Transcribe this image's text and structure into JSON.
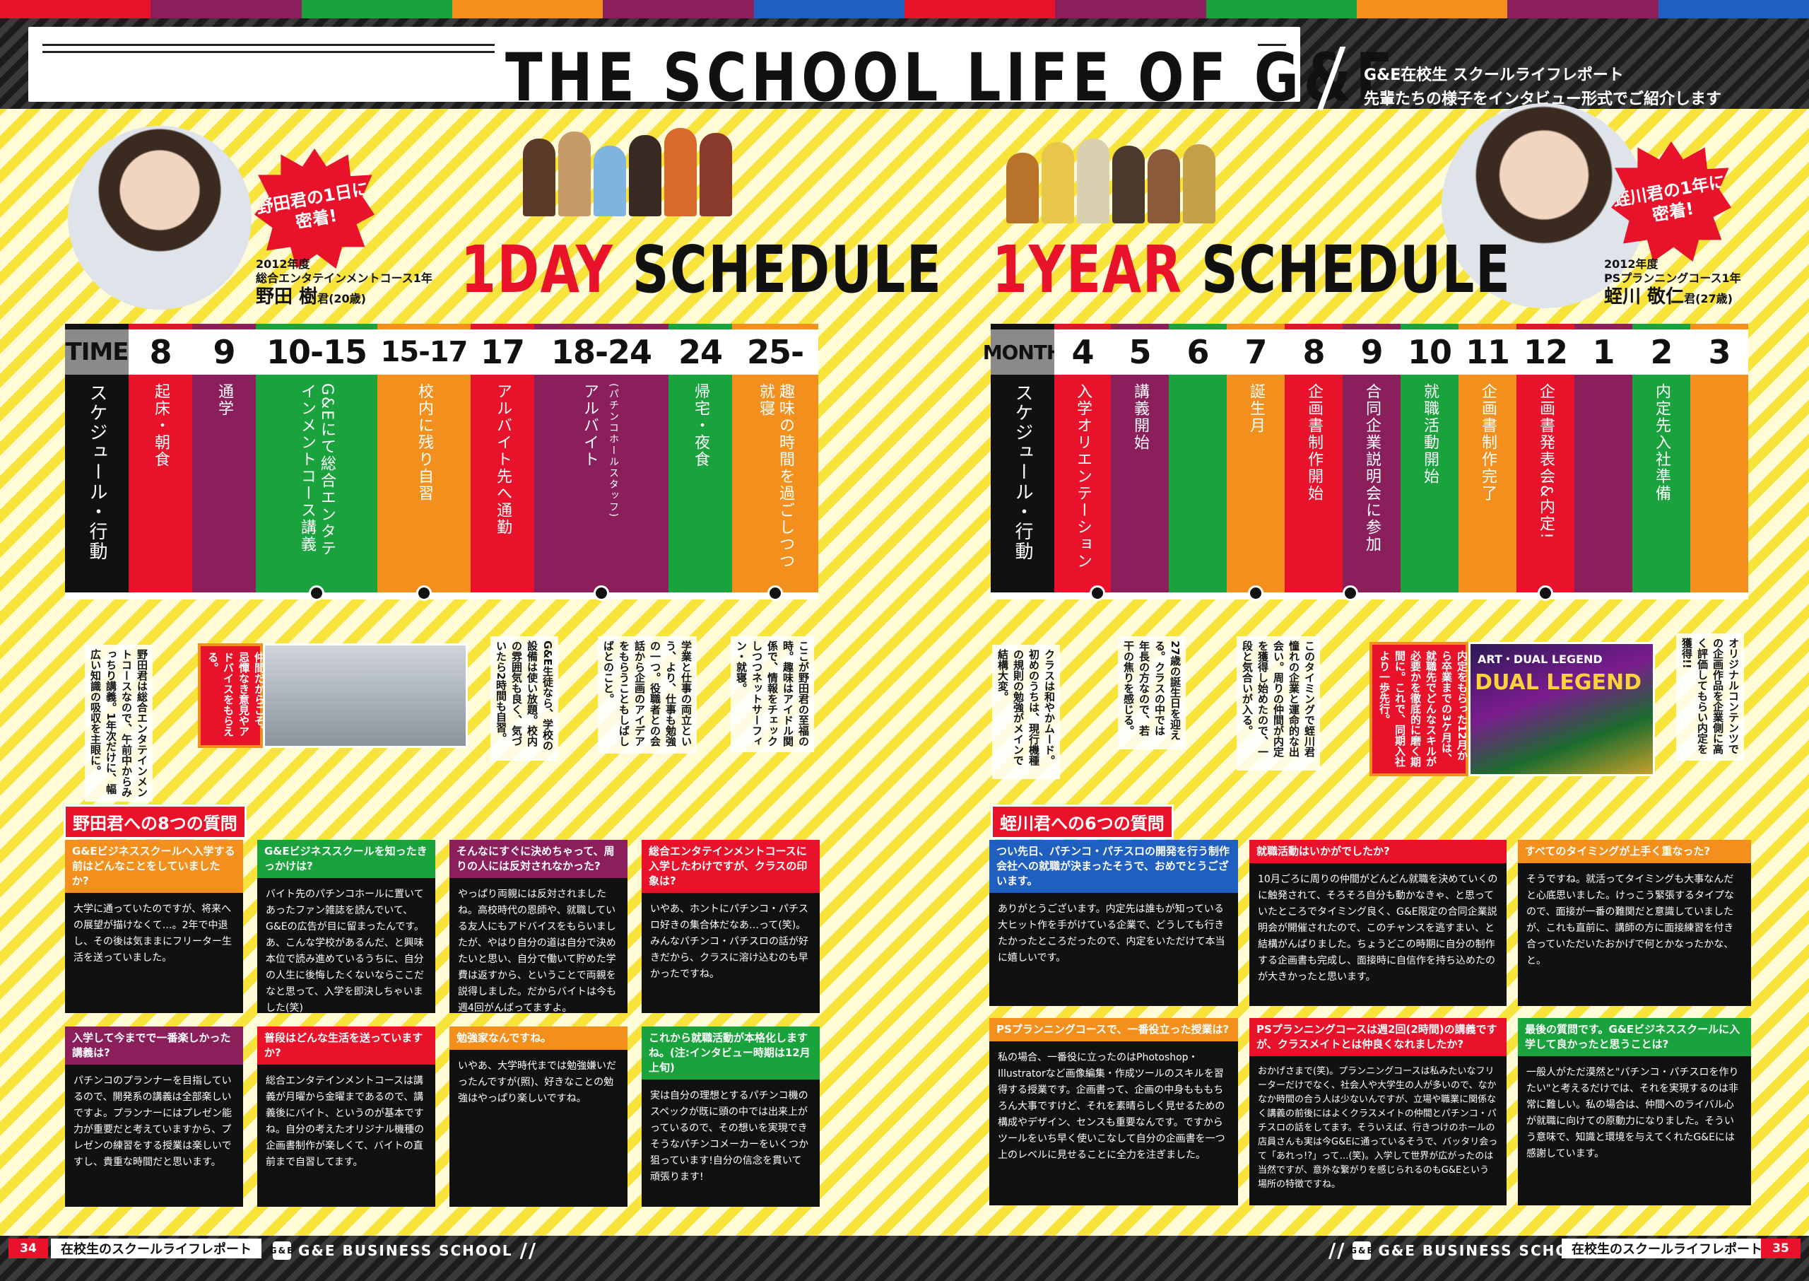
{
  "header": {
    "title": "THE SCHOOL LIFE OF G&E",
    "subtitle_line1": "G&E在校生 スクールライフレポート",
    "subtitle_line2": "先輩たちの様子をインタビュー形式でご紹介します"
  },
  "colors": {
    "red": "#e8132a",
    "purple": "#8b1f5c",
    "green": "#1aa23d",
    "orange": "#f3901d",
    "black": "#111111",
    "yellow": "#f7e33a",
    "blue": "#1f5fbf"
  },
  "left": {
    "burst": "野田君の1日に密着!",
    "person_year": "2012年度",
    "person_course": "総合エンタテインメントコース1年",
    "person_name": "野田 樹",
    "person_suffix": "君(20歳)",
    "title_red": "1DAY",
    "title_black": "SCHEDULE",
    "schedule": {
      "header_label": "TIME",
      "row_label": "スケジュール・行動",
      "columns": [
        {
          "h": "8",
          "text": "起床・朝食",
          "sub": ""
        },
        {
          "h": "9",
          "text": "通学",
          "sub": ""
        },
        {
          "h": "10-15",
          "text": "G&Eにて総合エンタテインメントコース講義",
          "sub": ""
        },
        {
          "h": "15-17",
          "text": "校内に残り自習",
          "sub": ""
        },
        {
          "h": "17",
          "text": "アルバイト先へ通勤",
          "sub": ""
        },
        {
          "h": "18-24",
          "text": "アルバイト",
          "sub": "(パチンコホールスタッフ)"
        },
        {
          "h": "24",
          "text": "帰宅・夜食",
          "sub": ""
        },
        {
          "h": "25-",
          "text": "趣味の時間を過ごしつつ就寝",
          "sub": ""
        }
      ]
    },
    "notes": [
      "野田君は総合エンタテインメントコースなので、午前中からみっちり講義。1年次だけに、幅広い知識の吸収を主眼に。",
      "この時間を利用して制作したオリジナルの企画書を、クラスメイトに公開!同じ夢を持つ仲間だからこそ、忌憚なき意見やアドバイスをもらえる。",
      "G&E生徒なら、学校の設備は使い放題。校内の雰囲気も良く、気づいたら2時間も自習。",
      "学業と仕事の両立という、より、仕事も勉強の一つ。役職者との会話から企画のアイデアをもらうこともしばしばとのこと。",
      "ここが野田君の至福の時。趣味はアイドル関係で、情報をチェックしつつネットサーフィン・就寝。"
    ],
    "qa_title": "野田君への8つの質問",
    "qa": [
      {
        "q": "G&Eビジネススクールへ入学する前はどんなことをしていましたか?",
        "a": "大学に通っていたのですが、将来への展望が描けなくて…。2年で中退し、その後は気ままにフリーター生活を送っていました。"
      },
      {
        "q": "G&Eビジネススクールを知ったきっかけは?",
        "a": "バイト先のパチンコホールに置いてあったファン雑誌を読んでいて、G&Eの広告が目に留まったんです。あ、こんな学校があるんだ、と興味本位で読み進めているうちに、自分の人生に後悔したくないならここだなと思って、入学を即決しちゃいました(笑)"
      },
      {
        "q": "そんなにすぐに決めちゃって、周りの人には反対されなかった?",
        "a": "やっぱり両親には反対されましたね。高校時代の恩師や、就職している友人にもアドバイスをもらいましたが、やはり自分の道は自分で決めたいと思い、自分で働いて貯めた学費は返すから、ということで両親を説得しました。だからバイトは今も週4回がんばってますよ。"
      },
      {
        "q": "総合エンタテインメントコースに入学したわけですが、クラスの印象は?",
        "a": "いやあ、ホントにパチンコ・パチスロ好きの集合体だなあ…って(笑)。みんなパチンコ・パチスロの話が好きだから、クラスに溶け込むのも早かったですね。"
      },
      {
        "q": "入学して今までで一番楽しかった講義は?",
        "a": "パチンコのプランナーを目指しているので、開発系の講義は全部楽しいですよ。プランナーにはプレゼン能力が重要だと考えていますから、プレゼンの練習をする授業は楽しいですし、貴重な時間だと思います。"
      },
      {
        "q": "普段はどんな生活を送っていますか?",
        "a": "総合エンタテインメントコースは講義が月曜から金曜まであるので、講義後にバイト、というのが基本ですね。自分の考えたオリジナル機種の企画書制作が楽しくて、バイトの直前まで自習してます。"
      },
      {
        "q": "勉強家なんですね。",
        "a": "いやあ、大学時代までは勉強嫌いだったんですが(照)、好きなことの勉強はやっぱり楽しいですね。"
      },
      {
        "q": "これから就職活動が本格化しますね。(注:インタビュー時期は12月上旬)",
        "a": "実は自分の理想とするパチンコ機のスペックが既に頭の中では出来上がっているので、その想いを実現できそうなパチンコメーカーをいくつか狙っています!自分の信念を貫いて頑張ります!"
      }
    ]
  },
  "right": {
    "burst": "蛭川君の1年に密着!",
    "person_year": "2012年度",
    "person_course": "PSプランニングコース1年",
    "person_name": "蛭川 敬仁",
    "person_suffix": "君(27歳)",
    "title_red": "1YEAR",
    "title_black": "SCHEDULE",
    "schedule": {
      "header_label": "MONTH",
      "row_label": "スケジュール・行動",
      "columns": [
        {
          "h": "4",
          "text": "入学オリエンテーション"
        },
        {
          "h": "5",
          "text": "講義開始"
        },
        {
          "h": "6",
          "text": ""
        },
        {
          "h": "7",
          "text": "誕生月"
        },
        {
          "h": "8",
          "text": "企画書制作開始"
        },
        {
          "h": "9",
          "text": "合同企業説明会に参加"
        },
        {
          "h": "10",
          "text": "就職活動開始"
        },
        {
          "h": "11",
          "text": "企画書制作完了"
        },
        {
          "h": "12",
          "text": "企画書発表会&内定!"
        },
        {
          "h": "1",
          "text": ""
        },
        {
          "h": "2",
          "text": "内定先入社準備"
        },
        {
          "h": "3",
          "text": ""
        }
      ]
    },
    "notes": [
      "クラスは和やかムード。初めのうちは、現行機種の規則の勉強がメインで結構大変。",
      "27歳の誕生日を迎える。クラスの中では年長の方なので、若干の焦りを感じる。",
      "このタイミングで蛭川君憧れの企業と運命的な出会い。周りの仲間が内定を獲得し始めたので、一段と気合いが入る。",
      "内定をもらった12月から卒業までの3ケ月は、就職先でどんなスキルが必要かを徹底的に磨く期間に。これで、同期入社より一歩先行。",
      "オリジナルコンテンツでの企画作品を企業側に高く評価してもらい内定を獲得!!"
    ],
    "game_label": "ART・DUAL LEGEND",
    "game_title": "DUAL LEGEND",
    "qa_title": "蛭川君への6つの質問",
    "qa": [
      {
        "q": "つい先日、パチンコ・パチスロの開発を行う制作会社への就職が決まったそうで、おめでとうございます。",
        "a": "ありがとうございます。内定先は誰もが知っている大ヒット作を手がけている企業で、どうしても行きたかったところだったので、内定をいただけて本当に嬉しいです。"
      },
      {
        "q": "就職活動はいかがでしたか?",
        "a": "10月ごろに周りの仲間がどんどん就職を決めていくのに触発されて、そろそろ自分も動かなきゃ、と思っていたところでタイミング良く、G&E限定の合同企業説明会が開催されたので、このチャンスを逃すまい、と結構がんばりました。ちょうどこの時期に自分の制作する企画書も完成し、面接時に自信作を持ち込めたのが大きかったと思います。"
      },
      {
        "q": "すべてのタイミングが上手く重なった?",
        "a": "そうですね。就活ってタイミングも大事なんだと心底思いました。けっこう緊張するタイプなので、面接が一番の難関だと意識していましたが、これも直前に、講師の方に面接練習を付き合っていただいたおかげで何とかなったかな、と。"
      },
      {
        "q": "PSプランニングコースで、一番役立った授業は?",
        "a": "私の場合、一番役に立ったのはPhotoshop・Illustratorなど画像編集・作成ツールのスキルを習得する授業です。企画書って、企画の中身もももちろん大事ですけど、それを素晴らしく見せるための構成やデザイン、センスも重要なんです。ですからツールをいち早く使いこなして自分の企画書を一つ上のレベルに見せることに全力を注ぎました。"
      },
      {
        "q": "PSプランニングコースは週2回(2時間)の講義ですが、クラスメイトとは仲良くなれましたか?",
        "a": "おかげさまで(笑)。プランニングコースは私みたいなフリーターだけでなく、社会人や大学生の人が多いので、なかなか時間の合う人は少ないんですが、立場や職業に関係なく講義の前後にはよくクラスメイトの仲間とパチンコ・パチスロの話をしてます。そういえば、行きつけのホールの店員さんも実は今G&Eに通っているそうで、バッタリ会って「あれっ!?」って…(笑)。入学して世界が広がったのは当然ですが、意外な繋がりを感じられるのもG&Eという場所の特徴ですね。"
      },
      {
        "q": "最後の質問です。G&Eビジネススクールに入学して良かったと思うことは?",
        "a": "一般人がただ漠然と\"パチンコ・パチスロを作りたい\"と考えるだけでは、それを実現するのは非常に難しい。私の場合は、仲間へのライバル心が就職に向けての原動力になりました。そういう意味で、知識と環境を与えてくれたG&Eには感謝しています。"
      }
    ]
  },
  "footer": {
    "page_left": "34",
    "page_right": "35",
    "label": "在校生のスクールライフレポート",
    "school": "G&E BUSINESS SCHOOL",
    "logo": "G&E"
  }
}
